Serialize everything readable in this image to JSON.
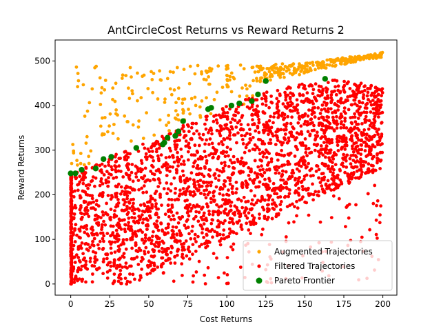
{
  "chart_data": {
    "type": "scatter",
    "title": "AntCircleCost Returns vs Reward Returns 2",
    "xlabel": "Cost Returns",
    "ylabel": "Reward Returns",
    "xlim": [
      -10,
      209
    ],
    "ylim": [
      -25,
      547
    ],
    "xticks": [
      0,
      25,
      50,
      75,
      100,
      125,
      150,
      175,
      200
    ],
    "yticks": [
      0,
      100,
      200,
      300,
      400,
      500
    ],
    "grid": false,
    "legend_position": "lower-right",
    "series": [
      {
        "name": "Augmented Trajectories",
        "color": "#ffa500",
        "approx_count": 420,
        "x_range": [
          0,
          200
        ],
        "y_range": [
          240,
          525
        ],
        "upper_bound_trend": [
          [
            0,
            490
          ],
          [
            50,
            490
          ],
          [
            100,
            490
          ],
          [
            150,
            495
          ],
          [
            200,
            520
          ]
        ],
        "lower_bound_trend": [
          [
            0,
            250
          ],
          [
            40,
            300
          ],
          [
            80,
            370
          ],
          [
            120,
            410
          ],
          [
            160,
            460
          ],
          [
            200,
            505
          ]
        ]
      },
      {
        "name": "Filtered Trajectories",
        "color": "#ff0000",
        "approx_count": 3000,
        "x_range": [
          0,
          200
        ],
        "y_range": [
          0,
          465
        ],
        "upper_bound_trend": [
          [
            0,
            250
          ],
          [
            25,
            285
          ],
          [
            50,
            320
          ],
          [
            75,
            360
          ],
          [
            100,
            400
          ],
          [
            125,
            430
          ],
          [
            150,
            455
          ],
          [
            175,
            460
          ],
          [
            200,
            440
          ]
        ]
      },
      {
        "name": "Pareto Frontier",
        "color": "#008000",
        "points": [
          [
            0,
            248
          ],
          [
            3,
            248
          ],
          [
            7,
            256
          ],
          [
            16,
            259
          ],
          [
            21,
            280
          ],
          [
            26,
            285
          ],
          [
            42,
            305
          ],
          [
            59,
            313
          ],
          [
            60,
            317
          ],
          [
            62,
            328
          ],
          [
            67,
            332
          ],
          [
            69,
            342
          ],
          [
            72,
            365
          ],
          [
            88,
            392
          ],
          [
            90,
            395
          ],
          [
            103,
            400
          ],
          [
            108,
            405
          ],
          [
            116,
            410
          ],
          [
            120,
            425
          ],
          [
            125,
            455
          ],
          [
            163,
            460
          ]
        ]
      }
    ]
  }
}
